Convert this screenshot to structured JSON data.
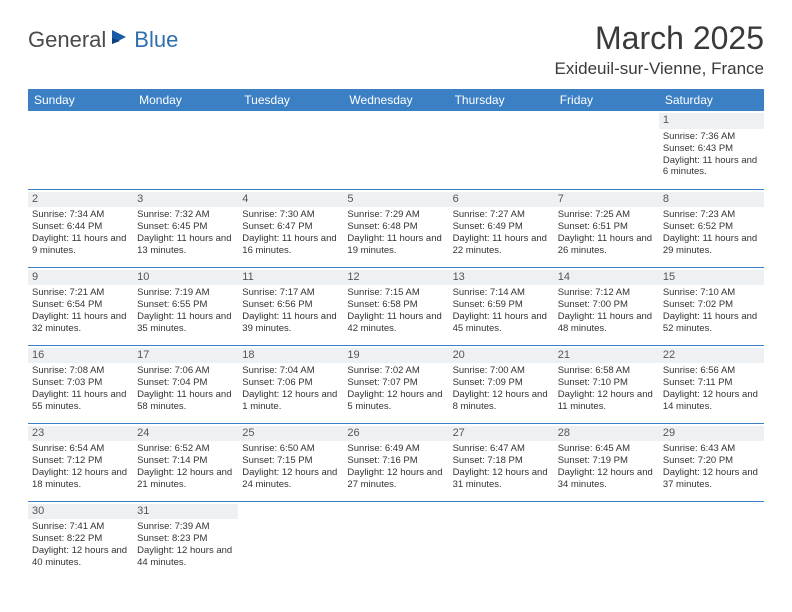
{
  "logo": {
    "general": "General",
    "blue": "Blue"
  },
  "header": {
    "title": "March 2025",
    "location": "Exideuil-sur-Vienne, France"
  },
  "colors": {
    "header_bg": "#3b7fc4",
    "header_fg": "#ffffff",
    "daynum_bg": "#eef1f3",
    "border": "#3b7fc4"
  },
  "days_of_week": [
    "Sunday",
    "Monday",
    "Tuesday",
    "Wednesday",
    "Thursday",
    "Friday",
    "Saturday"
  ],
  "weeks": [
    [
      {
        "n": "",
        "sr": "",
        "ss": "",
        "dl": ""
      },
      {
        "n": "",
        "sr": "",
        "ss": "",
        "dl": ""
      },
      {
        "n": "",
        "sr": "",
        "ss": "",
        "dl": ""
      },
      {
        "n": "",
        "sr": "",
        "ss": "",
        "dl": ""
      },
      {
        "n": "",
        "sr": "",
        "ss": "",
        "dl": ""
      },
      {
        "n": "",
        "sr": "",
        "ss": "",
        "dl": ""
      },
      {
        "n": "1",
        "sr": "Sunrise: 7:36 AM",
        "ss": "Sunset: 6:43 PM",
        "dl": "Daylight: 11 hours and 6 minutes."
      }
    ],
    [
      {
        "n": "2",
        "sr": "Sunrise: 7:34 AM",
        "ss": "Sunset: 6:44 PM",
        "dl": "Daylight: 11 hours and 9 minutes."
      },
      {
        "n": "3",
        "sr": "Sunrise: 7:32 AM",
        "ss": "Sunset: 6:45 PM",
        "dl": "Daylight: 11 hours and 13 minutes."
      },
      {
        "n": "4",
        "sr": "Sunrise: 7:30 AM",
        "ss": "Sunset: 6:47 PM",
        "dl": "Daylight: 11 hours and 16 minutes."
      },
      {
        "n": "5",
        "sr": "Sunrise: 7:29 AM",
        "ss": "Sunset: 6:48 PM",
        "dl": "Daylight: 11 hours and 19 minutes."
      },
      {
        "n": "6",
        "sr": "Sunrise: 7:27 AM",
        "ss": "Sunset: 6:49 PM",
        "dl": "Daylight: 11 hours and 22 minutes."
      },
      {
        "n": "7",
        "sr": "Sunrise: 7:25 AM",
        "ss": "Sunset: 6:51 PM",
        "dl": "Daylight: 11 hours and 26 minutes."
      },
      {
        "n": "8",
        "sr": "Sunrise: 7:23 AM",
        "ss": "Sunset: 6:52 PM",
        "dl": "Daylight: 11 hours and 29 minutes."
      }
    ],
    [
      {
        "n": "9",
        "sr": "Sunrise: 7:21 AM",
        "ss": "Sunset: 6:54 PM",
        "dl": "Daylight: 11 hours and 32 minutes."
      },
      {
        "n": "10",
        "sr": "Sunrise: 7:19 AM",
        "ss": "Sunset: 6:55 PM",
        "dl": "Daylight: 11 hours and 35 minutes."
      },
      {
        "n": "11",
        "sr": "Sunrise: 7:17 AM",
        "ss": "Sunset: 6:56 PM",
        "dl": "Daylight: 11 hours and 39 minutes."
      },
      {
        "n": "12",
        "sr": "Sunrise: 7:15 AM",
        "ss": "Sunset: 6:58 PM",
        "dl": "Daylight: 11 hours and 42 minutes."
      },
      {
        "n": "13",
        "sr": "Sunrise: 7:14 AM",
        "ss": "Sunset: 6:59 PM",
        "dl": "Daylight: 11 hours and 45 minutes."
      },
      {
        "n": "14",
        "sr": "Sunrise: 7:12 AM",
        "ss": "Sunset: 7:00 PM",
        "dl": "Daylight: 11 hours and 48 minutes."
      },
      {
        "n": "15",
        "sr": "Sunrise: 7:10 AM",
        "ss": "Sunset: 7:02 PM",
        "dl": "Daylight: 11 hours and 52 minutes."
      }
    ],
    [
      {
        "n": "16",
        "sr": "Sunrise: 7:08 AM",
        "ss": "Sunset: 7:03 PM",
        "dl": "Daylight: 11 hours and 55 minutes."
      },
      {
        "n": "17",
        "sr": "Sunrise: 7:06 AM",
        "ss": "Sunset: 7:04 PM",
        "dl": "Daylight: 11 hours and 58 minutes."
      },
      {
        "n": "18",
        "sr": "Sunrise: 7:04 AM",
        "ss": "Sunset: 7:06 PM",
        "dl": "Daylight: 12 hours and 1 minute."
      },
      {
        "n": "19",
        "sr": "Sunrise: 7:02 AM",
        "ss": "Sunset: 7:07 PM",
        "dl": "Daylight: 12 hours and 5 minutes."
      },
      {
        "n": "20",
        "sr": "Sunrise: 7:00 AM",
        "ss": "Sunset: 7:09 PM",
        "dl": "Daylight: 12 hours and 8 minutes."
      },
      {
        "n": "21",
        "sr": "Sunrise: 6:58 AM",
        "ss": "Sunset: 7:10 PM",
        "dl": "Daylight: 12 hours and 11 minutes."
      },
      {
        "n": "22",
        "sr": "Sunrise: 6:56 AM",
        "ss": "Sunset: 7:11 PM",
        "dl": "Daylight: 12 hours and 14 minutes."
      }
    ],
    [
      {
        "n": "23",
        "sr": "Sunrise: 6:54 AM",
        "ss": "Sunset: 7:12 PM",
        "dl": "Daylight: 12 hours and 18 minutes."
      },
      {
        "n": "24",
        "sr": "Sunrise: 6:52 AM",
        "ss": "Sunset: 7:14 PM",
        "dl": "Daylight: 12 hours and 21 minutes."
      },
      {
        "n": "25",
        "sr": "Sunrise: 6:50 AM",
        "ss": "Sunset: 7:15 PM",
        "dl": "Daylight: 12 hours and 24 minutes."
      },
      {
        "n": "26",
        "sr": "Sunrise: 6:49 AM",
        "ss": "Sunset: 7:16 PM",
        "dl": "Daylight: 12 hours and 27 minutes."
      },
      {
        "n": "27",
        "sr": "Sunrise: 6:47 AM",
        "ss": "Sunset: 7:18 PM",
        "dl": "Daylight: 12 hours and 31 minutes."
      },
      {
        "n": "28",
        "sr": "Sunrise: 6:45 AM",
        "ss": "Sunset: 7:19 PM",
        "dl": "Daylight: 12 hours and 34 minutes."
      },
      {
        "n": "29",
        "sr": "Sunrise: 6:43 AM",
        "ss": "Sunset: 7:20 PM",
        "dl": "Daylight: 12 hours and 37 minutes."
      }
    ],
    [
      {
        "n": "30",
        "sr": "Sunrise: 7:41 AM",
        "ss": "Sunset: 8:22 PM",
        "dl": "Daylight: 12 hours and 40 minutes."
      },
      {
        "n": "31",
        "sr": "Sunrise: 7:39 AM",
        "ss": "Sunset: 8:23 PM",
        "dl": "Daylight: 12 hours and 44 minutes."
      },
      {
        "n": "",
        "sr": "",
        "ss": "",
        "dl": ""
      },
      {
        "n": "",
        "sr": "",
        "ss": "",
        "dl": ""
      },
      {
        "n": "",
        "sr": "",
        "ss": "",
        "dl": ""
      },
      {
        "n": "",
        "sr": "",
        "ss": "",
        "dl": ""
      },
      {
        "n": "",
        "sr": "",
        "ss": "",
        "dl": ""
      }
    ]
  ]
}
